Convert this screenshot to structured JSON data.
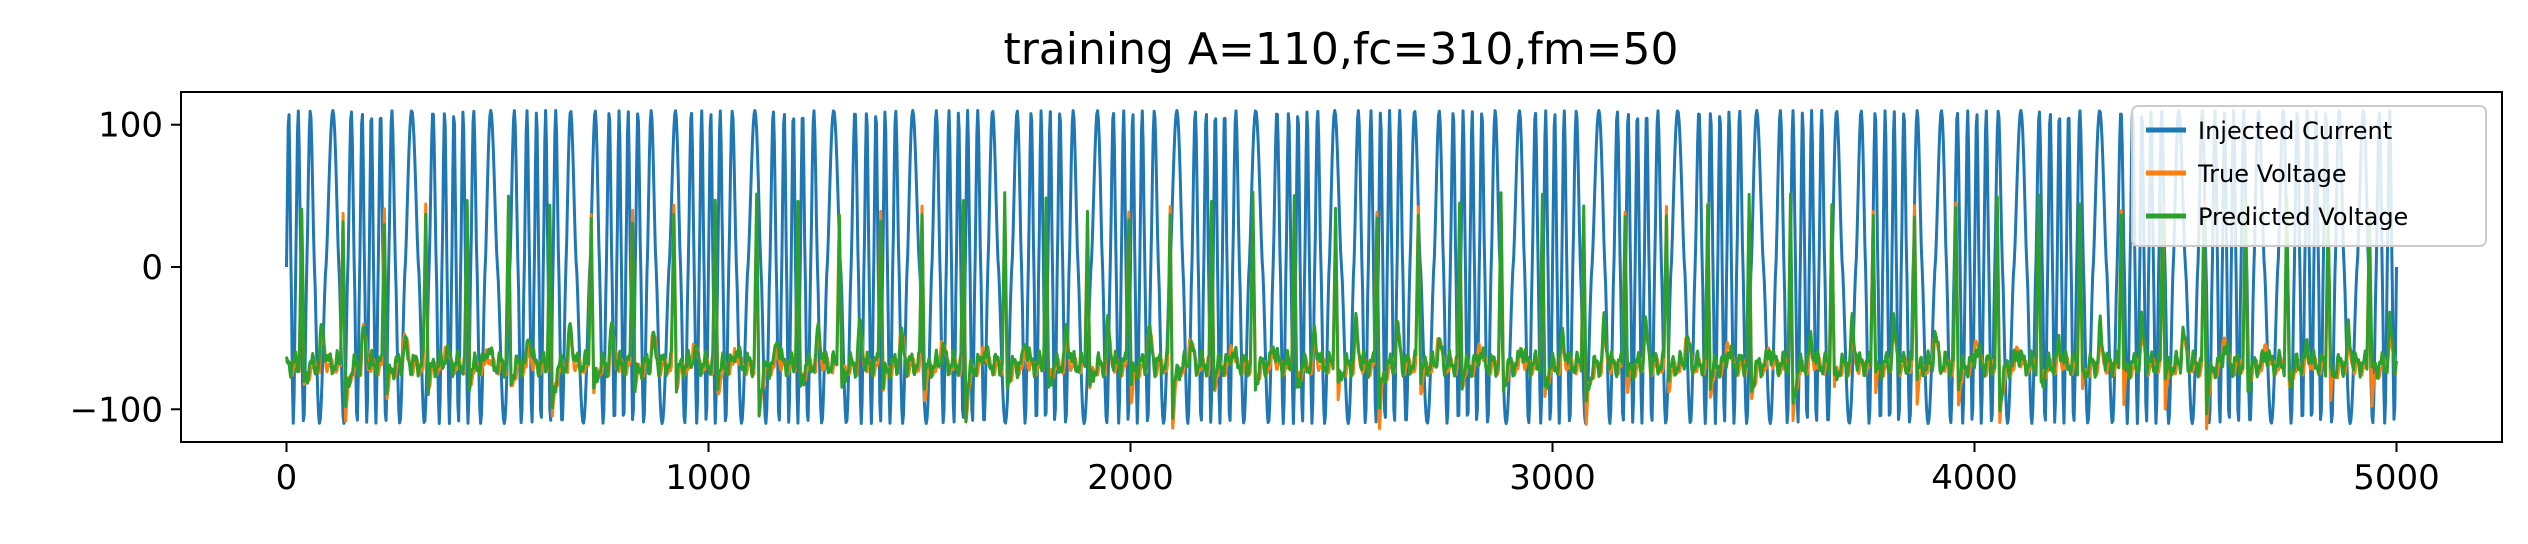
{
  "chart_data": {
    "type": "line",
    "title": "training A=110,fc=310,fm=50",
    "xlabel": "",
    "ylabel": "",
    "xlim": [
      -250,
      5250
    ],
    "ylim": [
      -123,
      123
    ],
    "xticks": [
      0,
      1000,
      2000,
      3000,
      4000,
      5000
    ],
    "xtick_labels": [
      "0",
      "1000",
      "2000",
      "3000",
      "4000",
      "5000"
    ],
    "yticks": [
      -100,
      0,
      100
    ],
    "ytick_labels": [
      "−100",
      "0",
      "100"
    ],
    "grid": false,
    "legend_position": "upper right",
    "x_range": [
      0,
      5000
    ],
    "series": [
      {
        "name": "Injected Current",
        "color": "#1f77b4",
        "amplitude": 110,
        "carrier_frequency": 310,
        "modulation_frequency": 50,
        "peak_values": [
          110,
          -110
        ]
      },
      {
        "name": "True Voltage",
        "color": "#ff7f0e",
        "range": [
          -110,
          42
        ],
        "baseline": -70
      },
      {
        "name": "Predicted Voltage",
        "color": "#2ca02c",
        "range": [
          -100,
          40
        ],
        "baseline": -70
      }
    ]
  }
}
